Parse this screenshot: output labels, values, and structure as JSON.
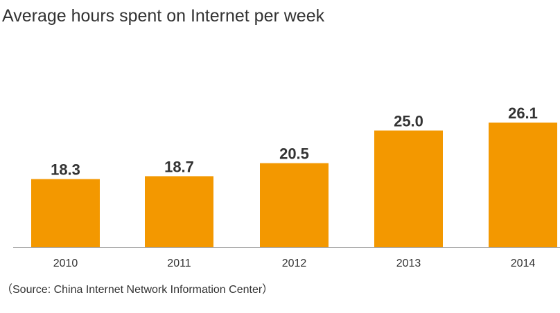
{
  "chart_data": {
    "type": "bar",
    "title": "Average hours spent on Internet per week",
    "categories": [
      "2010",
      "2011",
      "2012",
      "2013",
      "2014"
    ],
    "values": [
      18.3,
      18.7,
      20.5,
      25.0,
      26.1
    ],
    "data_labels": [
      "18.3",
      "18.7",
      "20.5",
      "25.0",
      "26.1"
    ],
    "xlabel": "",
    "ylabel": "",
    "ylim": [
      8.9,
      26.1
    ],
    "grid": false,
    "y_axis_visible": false,
    "legend": "none",
    "bar_color": "#F39800",
    "axis_color": "#AAAAAA",
    "source": "（Source: China Internet Network Information Center）"
  }
}
